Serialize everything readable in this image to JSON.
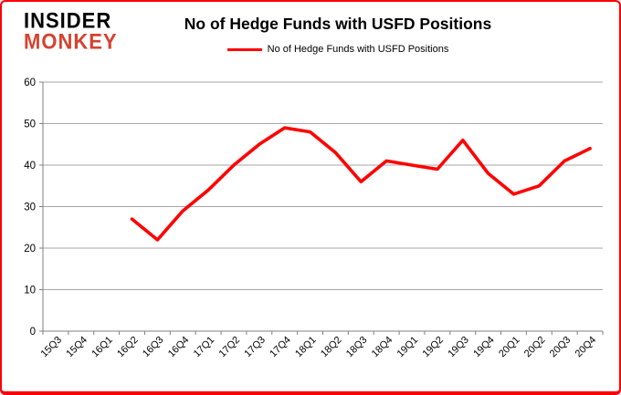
{
  "logo": {
    "line1": "INSIDER",
    "line2": "MONKEY"
  },
  "header": {
    "title": "No of Hedge Funds with USFD Positions",
    "legend_label": "No of Hedge Funds with USFD Positions"
  },
  "colors": {
    "series_line": "#fe0000",
    "legend_swatch": "#fe0000",
    "axis": "#808080",
    "gridline": "#a6a6a6",
    "label_text": "#000000",
    "logo_accent": "#d5422f",
    "border": "#fb0007"
  },
  "chart_data": {
    "type": "line",
    "title": "No of Hedge Funds with USFD Positions",
    "xlabel": "",
    "ylabel": "",
    "categories": [
      "15Q3",
      "15Q4",
      "16Q1",
      "16Q2",
      "16Q3",
      "16Q4",
      "17Q1",
      "17Q2",
      "17Q3",
      "17Q4",
      "18Q1",
      "18Q2",
      "18Q3",
      "18Q4",
      "19Q1",
      "19Q2",
      "19Q3",
      "19Q4",
      "20Q1",
      "20Q2",
      "20Q3",
      "20Q4"
    ],
    "series": [
      {
        "name": "No of Hedge Funds with USFD Positions",
        "color": "#fe0000",
        "start_index": 3,
        "start_category": "16Q2",
        "values": [
          27,
          22,
          29,
          34,
          40,
          45,
          49,
          48,
          43,
          36,
          41,
          40,
          39,
          46,
          38,
          33,
          35,
          41,
          44
        ]
      }
    ],
    "ylim": [
      0,
      60
    ],
    "ytick_interval": 10,
    "grid": true,
    "legend_position": "top"
  }
}
